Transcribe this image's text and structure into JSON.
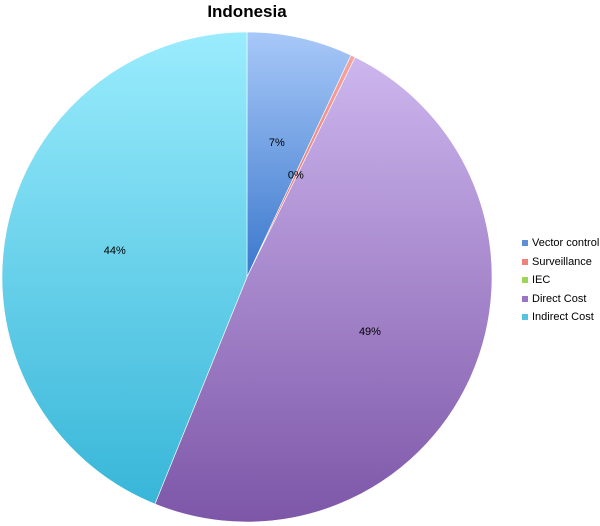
{
  "chart_data": {
    "type": "pie",
    "title": "Indonesia",
    "categories": [
      "Vector control",
      "Surveillance",
      "IEC",
      "Direct Cost",
      "Indirect Cost"
    ],
    "values": [
      7,
      0.3,
      0,
      49,
      44
    ],
    "data_labels": [
      "7%",
      "0%",
      "",
      "49%",
      "44%"
    ],
    "colors": [
      "#5b8fd6",
      "#f0807a",
      "#9ed45a",
      "#9a75c6",
      "#53c3e2"
    ],
    "gradients": [
      [
        "#a8c8f8",
        "#3a78cc"
      ],
      [
        "#f7a39e",
        "#e8665f"
      ],
      [
        "#c4ec9a",
        "#86c23c"
      ],
      [
        "#cdb6ee",
        "#7d56a8"
      ],
      [
        "#9aecfd",
        "#38b6d8"
      ]
    ],
    "legend_position": "right"
  }
}
